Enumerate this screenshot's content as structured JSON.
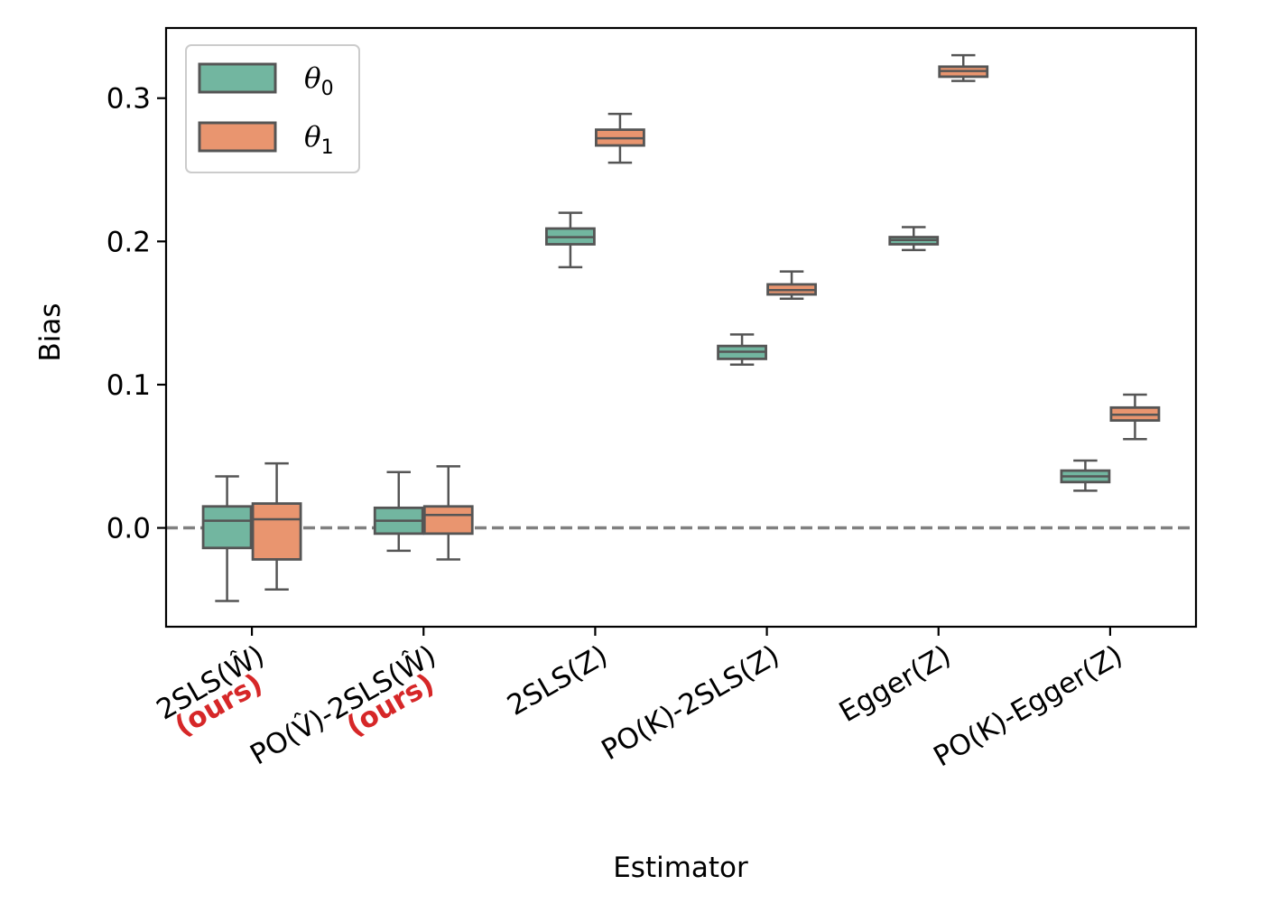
{
  "chart_data": {
    "type": "boxplot",
    "xlabel": "Estimator",
    "ylabel": "Bias",
    "ylim": [
      -0.069,
      0.349
    ],
    "yticks": [
      0.0,
      0.1,
      0.2,
      0.3
    ],
    "ytick_labels": [
      "0.0",
      "0.1",
      "0.2",
      "0.3"
    ],
    "reference_line": {
      "y": 0.0,
      "style": "dashed",
      "color": "#808080"
    },
    "ours_label": "(ours)",
    "ours_color": "#d62728",
    "box_edge_color": "#555555",
    "series": [
      {
        "name": "θ0",
        "symbol": "θ",
        "subscript": "0",
        "color": "#72b6a0"
      },
      {
        "name": "θ1",
        "symbol": "θ",
        "subscript": "1",
        "color": "#e9956f"
      }
    ],
    "categories": [
      {
        "label": "2SLS(Ŵ)",
        "ours": true,
        "boxes": [
          {
            "whisker_low": -0.051,
            "q1": -0.014,
            "median": 0.005,
            "q3": 0.015,
            "whisker_high": 0.036
          },
          {
            "whisker_low": -0.043,
            "q1": -0.022,
            "median": 0.006,
            "q3": 0.017,
            "whisker_high": 0.045
          }
        ]
      },
      {
        "label": "PO(V̂)-2SLS(Ŵ)",
        "ours": true,
        "boxes": [
          {
            "whisker_low": -0.016,
            "q1": -0.004,
            "median": 0.005,
            "q3": 0.014,
            "whisker_high": 0.039
          },
          {
            "whisker_low": -0.022,
            "q1": -0.004,
            "median": 0.009,
            "q3": 0.015,
            "whisker_high": 0.043
          }
        ]
      },
      {
        "label": "2SLS(Z)",
        "ours": false,
        "boxes": [
          {
            "whisker_low": 0.182,
            "q1": 0.198,
            "median": 0.203,
            "q3": 0.209,
            "whisker_high": 0.22
          },
          {
            "whisker_low": 0.255,
            "q1": 0.267,
            "median": 0.272,
            "q3": 0.278,
            "whisker_high": 0.289
          }
        ]
      },
      {
        "label": "PO(K)-2SLS(Z)",
        "ours": false,
        "boxes": [
          {
            "whisker_low": 0.114,
            "q1": 0.118,
            "median": 0.123,
            "q3": 0.127,
            "whisker_high": 0.135
          },
          {
            "whisker_low": 0.16,
            "q1": 0.163,
            "median": 0.166,
            "q3": 0.17,
            "whisker_high": 0.179
          }
        ]
      },
      {
        "label": "Egger(Z)",
        "ours": false,
        "boxes": [
          {
            "whisker_low": 0.194,
            "q1": 0.198,
            "median": 0.201,
            "q3": 0.203,
            "whisker_high": 0.21
          },
          {
            "whisker_low": 0.312,
            "q1": 0.315,
            "median": 0.319,
            "q3": 0.322,
            "whisker_high": 0.33
          }
        ]
      },
      {
        "label": "PO(K)-Egger(Z)",
        "ours": false,
        "boxes": [
          {
            "whisker_low": 0.026,
            "q1": 0.032,
            "median": 0.036,
            "q3": 0.04,
            "whisker_high": 0.047
          },
          {
            "whisker_low": 0.062,
            "q1": 0.075,
            "median": 0.079,
            "q3": 0.084,
            "whisker_high": 0.093
          }
        ]
      }
    ]
  }
}
